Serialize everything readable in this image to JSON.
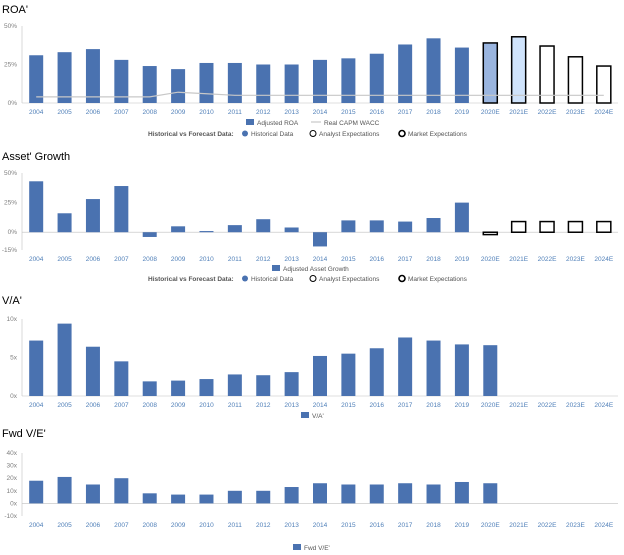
{
  "colors": {
    "bar": "#4a72b0",
    "bar_highlight_2020": "#9ab5df",
    "bar_highlight_2021": "#cfe3fb",
    "wacc_line": "#c8c8c8",
    "axis": "#bfbfbf",
    "title": "#000000",
    "tick": "#7f7f7f",
    "category": "#4f7fb8"
  },
  "icons": {
    "historical": "filled-circle-icon",
    "analyst": "hollow-circle-icon",
    "market": "hollow-circle-bold-icon"
  },
  "chart_data": [
    {
      "type": "bar",
      "title": "ROA'",
      "categories": [
        "2004",
        "2005",
        "2006",
        "2007",
        "2008",
        "2009",
        "2010",
        "2011",
        "2012",
        "2013",
        "2014",
        "2015",
        "2016",
        "2017",
        "2018",
        "2019",
        "2020E",
        "2021E",
        "2022E",
        "2023E",
        "2024E"
      ],
      "series": [
        {
          "name": "Adjusted ROA",
          "values": [
            31,
            33,
            35,
            28,
            24,
            22,
            26,
            26,
            25,
            25,
            28,
            29,
            32,
            38,
            42,
            36,
            39,
            43,
            37,
            30,
            24
          ]
        },
        {
          "name": "Real CAPM WACC",
          "type": "line",
          "values": [
            4,
            4,
            4,
            4,
            4,
            7,
            6,
            5,
            5,
            5,
            5,
            5,
            5,
            5,
            5,
            5,
            5,
            5,
            5,
            5,
            5
          ]
        }
      ],
      "bar_styles": [
        "hist",
        "hist",
        "hist",
        "hist",
        "hist",
        "hist",
        "hist",
        "hist",
        "hist",
        "hist",
        "hist",
        "hist",
        "hist",
        "hist",
        "hist",
        "hist",
        "analyst_2020",
        "analyst_2021",
        "market",
        "market",
        "market"
      ],
      "ylim": [
        0,
        50
      ],
      "yticks": [
        0,
        25,
        50
      ],
      "ytick_labels": [
        "0%",
        "25%",
        "50%"
      ],
      "xlabel": "",
      "ylabel": "",
      "legend": [
        "Adjusted ROA",
        "Real CAPM WACC"
      ],
      "forecast_legend": {
        "label": "Historical vs Forecast Data:",
        "items": [
          "Historical Data",
          "Analyst Expectations",
          "Market Expectations"
        ]
      }
    },
    {
      "type": "bar",
      "title": "Asset' Growth",
      "categories": [
        "2004",
        "2005",
        "2006",
        "2007",
        "2008",
        "2009",
        "2010",
        "2011",
        "2012",
        "2013",
        "2014",
        "2015",
        "2016",
        "2017",
        "2018",
        "2019",
        "2020E",
        "2021E",
        "2022E",
        "2023E",
        "2024E"
      ],
      "series": [
        {
          "name": "Adjusted Asset Growth",
          "values": [
            43,
            16,
            28,
            39,
            -4,
            5,
            1,
            6,
            11,
            4,
            -12,
            10,
            10,
            9,
            12,
            25,
            -2,
            9,
            9,
            9,
            9
          ]
        }
      ],
      "bar_styles": [
        "hist",
        "hist",
        "hist",
        "hist",
        "hist",
        "hist",
        "hist",
        "hist",
        "hist",
        "hist",
        "hist",
        "hist",
        "hist",
        "hist",
        "hist",
        "hist",
        "market",
        "market",
        "market",
        "market",
        "market"
      ],
      "ylim": [
        -15,
        50
      ],
      "yticks": [
        -15,
        0,
        25,
        50
      ],
      "ytick_labels": [
        "-15%",
        "0%",
        "25%",
        "50%"
      ],
      "xlabel": "",
      "ylabel": "",
      "legend": [
        "Adjusted Asset Growth"
      ],
      "forecast_legend": {
        "label": "Historical vs Forecast Data:",
        "items": [
          "Historical Data",
          "Analyst Expectations",
          "Market Expectations"
        ]
      }
    },
    {
      "type": "bar",
      "title": "V/A'",
      "categories": [
        "2004",
        "2005",
        "2006",
        "2007",
        "2008",
        "2009",
        "2010",
        "2011",
        "2012",
        "2013",
        "2014",
        "2015",
        "2016",
        "2017",
        "2018",
        "2019",
        "2020E",
        "2021E",
        "2022E",
        "2023E",
        "2024E"
      ],
      "series": [
        {
          "name": "V/A'",
          "values": [
            7.2,
            9.4,
            6.4,
            4.5,
            1.9,
            2.0,
            2.2,
            2.8,
            2.7,
            3.1,
            5.2,
            5.5,
            6.2,
            7.6,
            7.2,
            6.7,
            6.6,
            null,
            null,
            null,
            null
          ]
        }
      ],
      "ylim": [
        0,
        10
      ],
      "yticks": [
        0,
        5,
        10
      ],
      "ytick_labels": [
        "0x",
        "5x",
        "10x"
      ],
      "xlabel": "",
      "ylabel": "",
      "legend": [
        "V/A'"
      ]
    },
    {
      "type": "bar",
      "title": "Fwd V/E'",
      "categories": [
        "2004",
        "2005",
        "2006",
        "2007",
        "2008",
        "2009",
        "2010",
        "2011",
        "2012",
        "2013",
        "2014",
        "2015",
        "2016",
        "2017",
        "2018",
        "2019",
        "2020E",
        "2021E",
        "2022E",
        "2023E",
        "2024E"
      ],
      "series": [
        {
          "name": "Fwd V/E'",
          "values": [
            18,
            21,
            15,
            20,
            8,
            7,
            7,
            10,
            10,
            13,
            16,
            15,
            15,
            16,
            15,
            17,
            16,
            null,
            null,
            null,
            null
          ]
        }
      ],
      "ylim": [
        -10,
        40
      ],
      "yticks": [
        -10,
        0,
        10,
        20,
        30,
        40
      ],
      "ytick_labels": [
        "-10x",
        "0x",
        "10x",
        "20x",
        "30x",
        "40x"
      ],
      "xlabel": "",
      "ylabel": "",
      "legend": [
        "Fwd V/E'"
      ]
    }
  ]
}
